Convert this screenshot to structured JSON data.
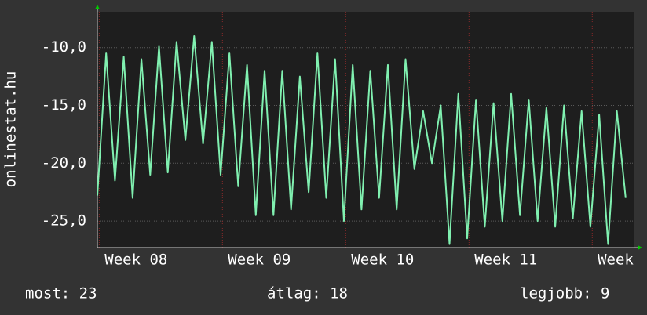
{
  "chart_data": {
    "type": "line",
    "ylabel": "onlinestat.hu",
    "x": [
      0,
      0.5,
      1,
      1.5,
      2,
      2.5,
      3,
      3.5,
      4,
      4.5,
      5,
      5.5,
      6,
      6.5,
      7,
      7.5,
      8,
      8.5,
      9,
      9.5,
      10,
      10.5,
      11,
      11.5,
      12,
      12.5,
      13,
      13.5,
      14,
      14.5,
      15,
      15.5,
      16,
      16.5,
      17,
      17.5,
      18,
      18.5,
      19,
      19.5,
      20,
      20.5,
      21,
      21.5,
      22,
      22.5,
      23,
      23.5,
      24,
      24.5,
      25,
      25.5,
      26,
      26.5,
      27,
      27.5,
      28,
      28.5,
      29,
      29.5,
      30
    ],
    "series": [
      {
        "color": "#80f0b0",
        "values": [
          -22.8,
          -10.5,
          -21.5,
          -10.8,
          -23.0,
          -11.0,
          -21.0,
          -9.9,
          -20.8,
          -9.5,
          -18.0,
          -9.0,
          -18.3,
          -9.5,
          -21.0,
          -10.5,
          -22.0,
          -11.5,
          -24.5,
          -12.0,
          -24.5,
          -12.0,
          -24.0,
          -12.5,
          -22.5,
          -10.5,
          -23.0,
          -11.0,
          -25.0,
          -11.5,
          -24.0,
          -12.0,
          -23.0,
          -11.5,
          -24.0,
          -11.0,
          -20.5,
          -15.5,
          -20.0,
          -15.0,
          -27.0,
          -14.0,
          -26.5,
          -14.5,
          -25.5,
          -14.8,
          -25.0,
          -14.0,
          -24.5,
          -14.5,
          -25.0,
          -15.2,
          -25.5,
          -15.0,
          -24.8,
          -15.5,
          -25.5,
          -15.8,
          -27.0,
          -15.5,
          -23.0
        ]
      }
    ],
    "xlim": [
      0,
      30.5
    ],
    "xticks": [
      {
        "value": 2.2,
        "label": "Week 08"
      },
      {
        "value": 9.2,
        "label": "Week 09"
      },
      {
        "value": 16.2,
        "label": "Week 10"
      },
      {
        "value": 23.2,
        "label": "Week 11"
      },
      {
        "value": 30.2,
        "label": "Week"
      }
    ],
    "ylim": [
      -27.3,
      -6.9
    ],
    "yticks": [
      {
        "value": -25,
        "label": "-25,0"
      },
      {
        "value": -20,
        "label": "-20,0"
      },
      {
        "value": -15,
        "label": "-15,0"
      },
      {
        "value": -10,
        "label": "-10,0"
      }
    ],
    "grid": true,
    "footer": {
      "now": "most: 23",
      "avg": "átlag: 18",
      "best": "legjobb: 9"
    }
  }
}
